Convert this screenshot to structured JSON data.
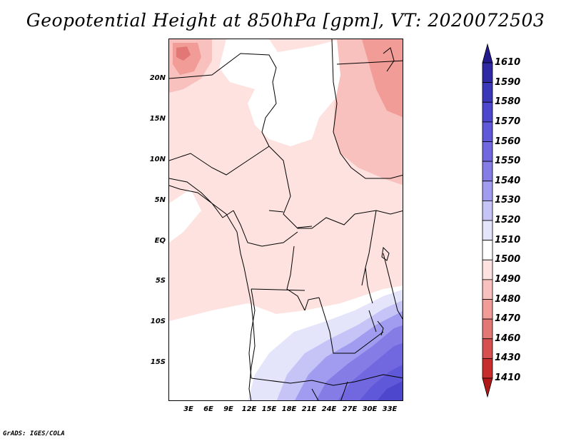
{
  "title": "Geopotential Height at 850hPa [gpm], VT: 2020072503",
  "credit": "GrADS: IGES/COLA",
  "lat_labels": [
    "20N",
    "15N",
    "10N",
    "5N",
    "EQ",
    "5S",
    "10S",
    "15S"
  ],
  "lon_labels": [
    "3E",
    "6E",
    "9E",
    "12E",
    "15E",
    "18E",
    "21E",
    "24E",
    "27E",
    "30E",
    "33E"
  ],
  "colorbar": {
    "levels_top_to_bottom": [
      "1610",
      "1590",
      "1580",
      "1570",
      "1560",
      "1550",
      "1540",
      "1530",
      "1520",
      "1510",
      "1500",
      "1490",
      "1480",
      "1470",
      "1460",
      "1430",
      "1410"
    ],
    "colors_top_to_bottom": [
      "#231b8c",
      "#2f2aa3",
      "#3b37b9",
      "#4c47cc",
      "#5f58d8",
      "#7167df",
      "#867ce6",
      "#a29cf0",
      "#c6c4f6",
      "#e4e4fa",
      "#ffffff",
      "#fde2e0",
      "#f8c1bd",
      "#f19c97",
      "#e27875",
      "#d6504f",
      "#c72d2b",
      "#b01818"
    ]
  }
}
